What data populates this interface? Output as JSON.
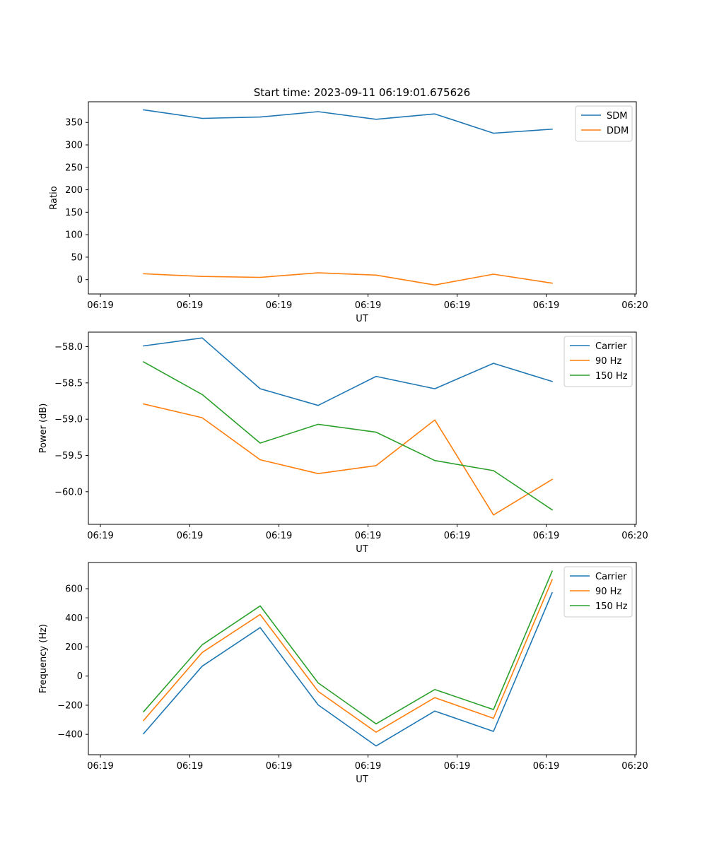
{
  "figure_title": "Start time: 2023-09-11 06:19:01.675626",
  "chart_data": [
    {
      "type": "line",
      "title": "Start time: 2023-09-11 06:19:01.675626",
      "xlabel": "UT",
      "ylabel": "Ratio",
      "x_tick_labels": [
        "06:19",
        "06:19",
        "06:19",
        "06:19",
        "06:19",
        "06:19",
        "06:20"
      ],
      "y_ticks": [
        0,
        50,
        100,
        150,
        200,
        250,
        300,
        350
      ],
      "y_tick_labels": [
        "0",
        "50",
        "100",
        "150",
        "200",
        "250",
        "300",
        "350"
      ],
      "ylim": [
        -32,
        396
      ],
      "legend_position": "top-right",
      "series": [
        {
          "name": "SDM",
          "color": "#1f77b4",
          "values": [
            378,
            359,
            362,
            374,
            357,
            369,
            326,
            335
          ]
        },
        {
          "name": "DDM",
          "color": "#ff7f0e",
          "values": [
            13,
            7,
            5,
            15,
            10,
            -12,
            12,
            -8
          ]
        }
      ]
    },
    {
      "type": "line",
      "title": "",
      "xlabel": "UT",
      "ylabel": "Power (dB)",
      "x_tick_labels": [
        "06:19",
        "06:19",
        "06:19",
        "06:19",
        "06:19",
        "06:19",
        "06:20"
      ],
      "y_ticks": [
        -58.0,
        -58.5,
        -59.0,
        -59.5,
        -60.0
      ],
      "y_tick_labels": [
        "−58.0",
        "−58.5",
        "−59.0",
        "−59.5",
        "−60.0"
      ],
      "ylim": [
        -60.45,
        -57.8
      ],
      "legend_position": "top-right",
      "series": [
        {
          "name": "Carrier",
          "color": "#1f77b4",
          "values": [
            -57.99,
            -57.88,
            -58.58,
            -58.81,
            -58.41,
            -58.58,
            -58.23,
            -58.48
          ]
        },
        {
          "name": "90 Hz",
          "color": "#ff7f0e",
          "values": [
            -58.79,
            -58.98,
            -59.56,
            -59.75,
            -59.64,
            -59.01,
            -60.32,
            -59.83
          ]
        },
        {
          "name": "150 Hz",
          "color": "#2ca02c",
          "values": [
            -58.21,
            -58.66,
            -59.33,
            -59.07,
            -59.18,
            -59.57,
            -59.71,
            -60.25
          ]
        }
      ]
    },
    {
      "type": "line",
      "title": "",
      "xlabel": "UT",
      "ylabel": "Frequency (Hz)",
      "x_tick_labels": [
        "06:19",
        "06:19",
        "06:19",
        "06:19",
        "06:19",
        "06:19",
        "06:20"
      ],
      "y_ticks": [
        -400,
        -200,
        0,
        200,
        400,
        600
      ],
      "y_tick_labels": [
        "−400",
        "−200",
        "0",
        "200",
        "400",
        "600"
      ],
      "ylim": [
        -540,
        780
      ],
      "legend_position": "top-right",
      "series": [
        {
          "name": "Carrier",
          "color": "#1f77b4",
          "values": [
            -396,
            68,
            333,
            -198,
            -480,
            -240,
            -380,
            573
          ]
        },
        {
          "name": "90 Hz",
          "color": "#ff7f0e",
          "values": [
            -305,
            162,
            423,
            -105,
            -385,
            -148,
            -290,
            662
          ]
        },
        {
          "name": "150 Hz",
          "color": "#2ca02c",
          "values": [
            -245,
            215,
            482,
            -47,
            -328,
            -92,
            -230,
            721
          ]
        }
      ]
    }
  ]
}
